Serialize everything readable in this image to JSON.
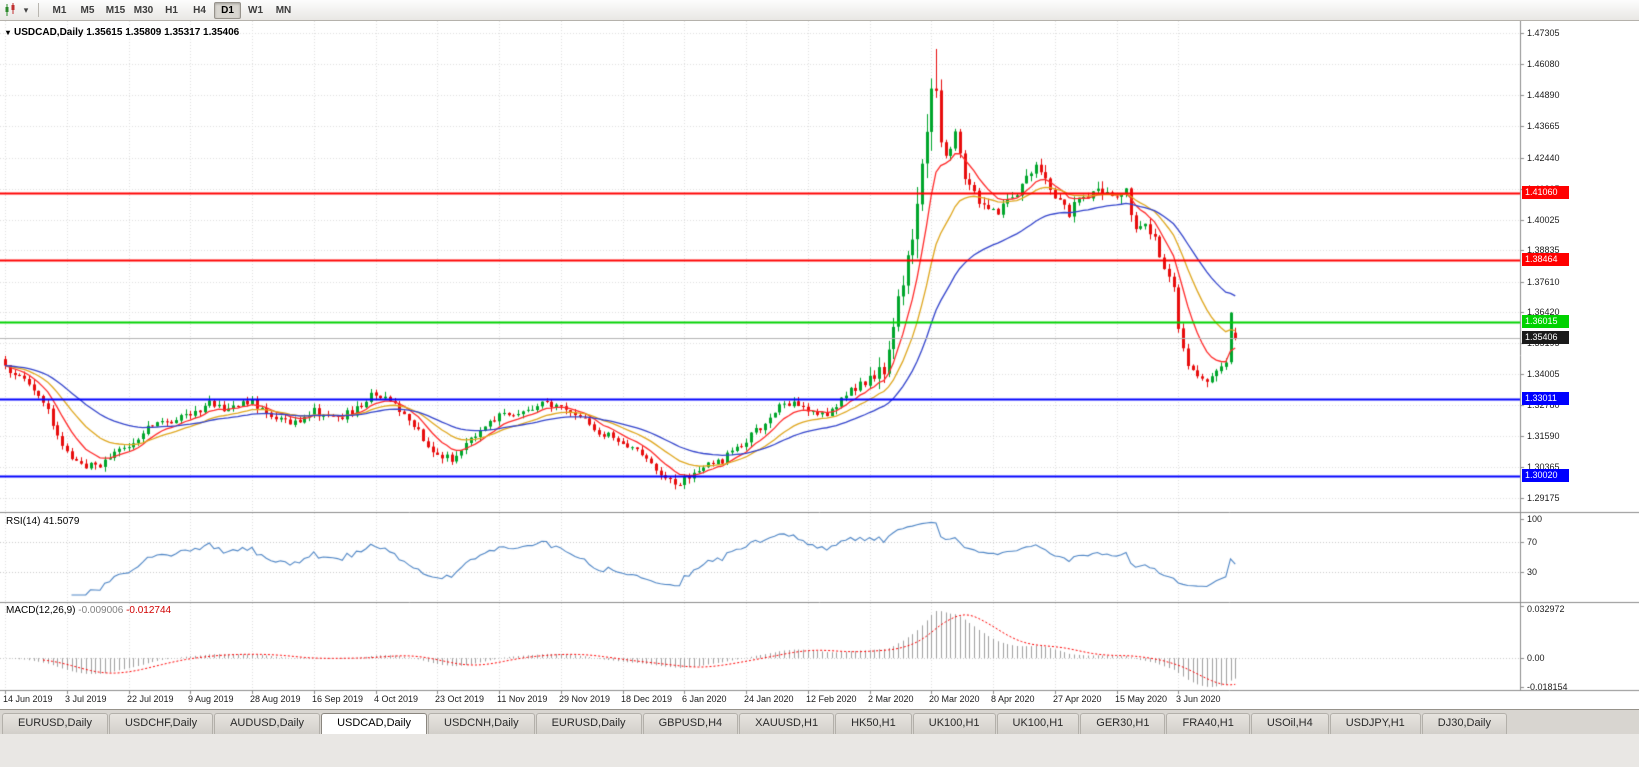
{
  "toolbar": {
    "caret": "▾",
    "timeframes": [
      {
        "label": "M1"
      },
      {
        "label": "M5"
      },
      {
        "label": "M15"
      },
      {
        "label": "M30"
      },
      {
        "label": "H1"
      },
      {
        "label": "H4"
      },
      {
        "label": "D1",
        "active": true
      },
      {
        "label": "W1"
      },
      {
        "label": "MN"
      }
    ]
  },
  "chart": {
    "menu_caret": "▾",
    "title": "USDCAD,Daily",
    "ohlc_text": "1.35615 1.35809 1.35317 1.35406",
    "open": "1.35615",
    "high": "1.35809",
    "low": "1.35317",
    "close": "1.35406"
  },
  "price_axis": [
    {
      "label": "1.47305",
      "value": 1.47305
    },
    {
      "label": "1.46080",
      "value": 1.4608
    },
    {
      "label": "1.44890",
      "value": 1.4489
    },
    {
      "label": "1.43665",
      "value": 1.43665
    },
    {
      "label": "1.42440",
      "value": 1.4244
    },
    {
      "label": "1.41215",
      "value": 1.41215
    },
    {
      "label": "1.40025",
      "value": 1.40025
    },
    {
      "label": "1.38835",
      "value": 1.38835
    },
    {
      "label": "1.37610",
      "value": 1.3761
    },
    {
      "label": "1.36420",
      "value": 1.3642
    },
    {
      "label": "1.35195",
      "value": 1.35195
    },
    {
      "label": "1.34005",
      "value": 1.34005
    },
    {
      "label": "1.32780",
      "value": 1.3278
    },
    {
      "label": "1.31590",
      "value": 1.3159
    },
    {
      "label": "1.30365",
      "value": 1.30365
    },
    {
      "label": "1.29175",
      "value": 1.29175
    }
  ],
  "levels": [
    {
      "name": "resistance-line-upper",
      "label": "1.41060",
      "value": 1.4106,
      "color": "#ff0000"
    },
    {
      "name": "resistance-line-lower",
      "label": "1.38464",
      "value": 1.38464,
      "color": "#ff0000"
    },
    {
      "name": "support-line-green",
      "label": "1.36015",
      "value": 1.36015,
      "color": "#00d200"
    },
    {
      "name": "support-line-blue-upper",
      "label": "1.33011",
      "value": 1.33011,
      "color": "#0000ff"
    },
    {
      "name": "support-line-blue-lower",
      "label": "1.30020",
      "value": 1.3002,
      "color": "#0000ff"
    }
  ],
  "current_price": {
    "label": "1.35406",
    "value": 1.35406,
    "bg": "#1a1a1a"
  },
  "rsi": {
    "name": "RSI(14)",
    "value": "41.5079",
    "color": "#4f86c6",
    "ylim": [
      -8,
      108
    ],
    "levels": [
      70,
      30
    ],
    "axis_labels": [
      {
        "label": "100",
        "value": 100
      },
      {
        "label": "70",
        "value": 70
      },
      {
        "label": "30",
        "value": 30
      }
    ]
  },
  "macd": {
    "name": "MACD(12,26,9)",
    "value_macd": "-0.009006",
    "value_signal": "-0.012744",
    "hist_color": "#a0a0a0",
    "signal_color": "#ff0000",
    "ylim": [
      -0.02,
      0.0346
    ],
    "axis_labels": [
      {
        "label": "0.032972",
        "value": 0.032972
      },
      {
        "label": "0.00",
        "value": 0
      },
      {
        "label": "-0.018154",
        "value": -0.018154
      }
    ]
  },
  "date_axis": [
    "14 Jun 2019",
    "3 Jul 2019",
    "22 Jul 2019",
    "9 Aug 2019",
    "28 Aug 2019",
    "16 Sep 2019",
    "4 Oct 2019",
    "23 Oct 2019",
    "11 Nov 2019",
    "29 Nov 2019",
    "18 Dec 2019",
    "6 Jan 2020",
    "24 Jan 2020",
    "12 Feb 2020",
    "2 Mar 2020",
    "20 Mar 2020",
    "8 Apr 2020",
    "27 Apr 2020",
    "15 May 2020",
    "3 Jun 2020"
  ],
  "tabs": [
    {
      "label": "EURUSD,Daily"
    },
    {
      "label": "USDCHF,Daily"
    },
    {
      "label": "AUDUSD,Daily"
    },
    {
      "label": "USDCAD,Daily",
      "active": true
    },
    {
      "label": "USDCNH,Daily"
    },
    {
      "label": "EURUSD,Daily"
    },
    {
      "label": "GBPUSD,H4"
    },
    {
      "label": "XAUUSD,H1"
    },
    {
      "label": "HK50,H1"
    },
    {
      "label": "UK100,H1"
    },
    {
      "label": "UK100,H1"
    },
    {
      "label": "GER30,H1"
    },
    {
      "label": "FRA40,H1"
    },
    {
      "label": "USOil,H4"
    },
    {
      "label": "USDJPY,H1"
    },
    {
      "label": "DJ30,Daily"
    }
  ],
  "chart_data": {
    "type": "candlestick",
    "symbol": "USDCAD",
    "timeframe": "Daily",
    "title": "USDCAD,Daily 1.35615 1.35809 1.35317 1.35406",
    "candle_count": 260,
    "dates_per_tick": 13,
    "ylim": [
      1.2866,
      1.4777
    ],
    "up_color": "#00a62c",
    "down_color": "#e80d0d",
    "extreme_high": 1.4668,
    "extreme_low": 1.2952,
    "last_candle": {
      "open": 1.35615,
      "high": 1.35809,
      "low": 1.35317,
      "close": 1.35406
    },
    "volatility_zones": [
      [
        0,
        182,
        0.0022
      ],
      [
        182,
        192,
        0.005
      ],
      [
        192,
        198,
        0.0085
      ],
      [
        198,
        238,
        0.0032
      ],
      [
        238,
        260,
        0.0024
      ]
    ],
    "anchors": [
      [
        0,
        1.3425
      ],
      [
        4,
        1.339
      ],
      [
        8,
        1.329
      ],
      [
        13,
        1.3085
      ],
      [
        17,
        1.304
      ],
      [
        21,
        1.3055
      ],
      [
        26,
        1.3125
      ],
      [
        30,
        1.3185
      ],
      [
        34,
        1.3215
      ],
      [
        39,
        1.3235
      ],
      [
        43,
        1.3285
      ],
      [
        47,
        1.326
      ],
      [
        52,
        1.3295
      ],
      [
        56,
        1.323
      ],
      [
        60,
        1.3205
      ],
      [
        65,
        1.3255
      ],
      [
        69,
        1.3225
      ],
      [
        73,
        1.3255
      ],
      [
        78,
        1.333
      ],
      [
        82,
        1.3285
      ],
      [
        86,
        1.3195
      ],
      [
        91,
        1.3085
      ],
      [
        94,
        1.3065
      ],
      [
        99,
        1.3155
      ],
      [
        104,
        1.3235
      ],
      [
        109,
        1.3265
      ],
      [
        113,
        1.3285
      ],
      [
        117,
        1.3285
      ],
      [
        121,
        1.3245
      ],
      [
        125,
        1.3175
      ],
      [
        130,
        1.3135
      ],
      [
        134,
        1.3085
      ],
      [
        138,
        1.3
      ],
      [
        141,
        1.2965
      ],
      [
        143,
        1.2985
      ],
      [
        147,
        1.3035
      ],
      [
        151,
        1.3065
      ],
      [
        156,
        1.3145
      ],
      [
        160,
        1.321
      ],
      [
        164,
        1.3295
      ],
      [
        169,
        1.3255
      ],
      [
        173,
        1.3235
      ],
      [
        177,
        1.332
      ],
      [
        182,
        1.3385
      ],
      [
        185,
        1.343
      ],
      [
        188,
        1.367
      ],
      [
        190,
        1.383
      ],
      [
        192,
        1.405
      ],
      [
        194,
        1.44
      ],
      [
        195,
        1.455
      ],
      [
        196,
        1.446
      ],
      [
        198,
        1.426
      ],
      [
        200,
        1.433
      ],
      [
        202,
        1.418
      ],
      [
        205,
        1.408
      ],
      [
        209,
        1.403
      ],
      [
        212,
        1.409
      ],
      [
        215,
        1.417
      ],
      [
        217,
        1.423
      ],
      [
        219,
        1.415
      ],
      [
        221,
        1.409
      ],
      [
        224,
        1.403
      ],
      [
        227,
        1.409
      ],
      [
        230,
        1.413
      ],
      [
        233,
        1.41
      ],
      [
        236,
        1.4115
      ],
      [
        238,
        1.396
      ],
      [
        240,
        1.399
      ],
      [
        242,
        1.392
      ],
      [
        244,
        1.38
      ],
      [
        246,
        1.373
      ],
      [
        247,
        1.356
      ],
      [
        248,
        1.35
      ],
      [
        249,
        1.343
      ],
      [
        251,
        1.3395
      ],
      [
        253,
        1.3365
      ],
      [
        255,
        1.3405
      ],
      [
        257,
        1.343
      ],
      [
        258,
        1.363
      ],
      [
        259,
        1.35406
      ]
    ],
    "moving_averages": [
      {
        "period": 8,
        "color": "#ff2a2a"
      },
      {
        "period": 17,
        "color": "#dfa71f"
      },
      {
        "period": 34,
        "color": "#3344cc"
      }
    ],
    "indicators": [
      {
        "name": "RSI",
        "period": 14,
        "last_value": 41.5079
      },
      {
        "name": "MACD",
        "fast": 12,
        "slow": 26,
        "signal": 9,
        "last_macd": -0.009006,
        "last_signal": -0.012744
      }
    ]
  }
}
